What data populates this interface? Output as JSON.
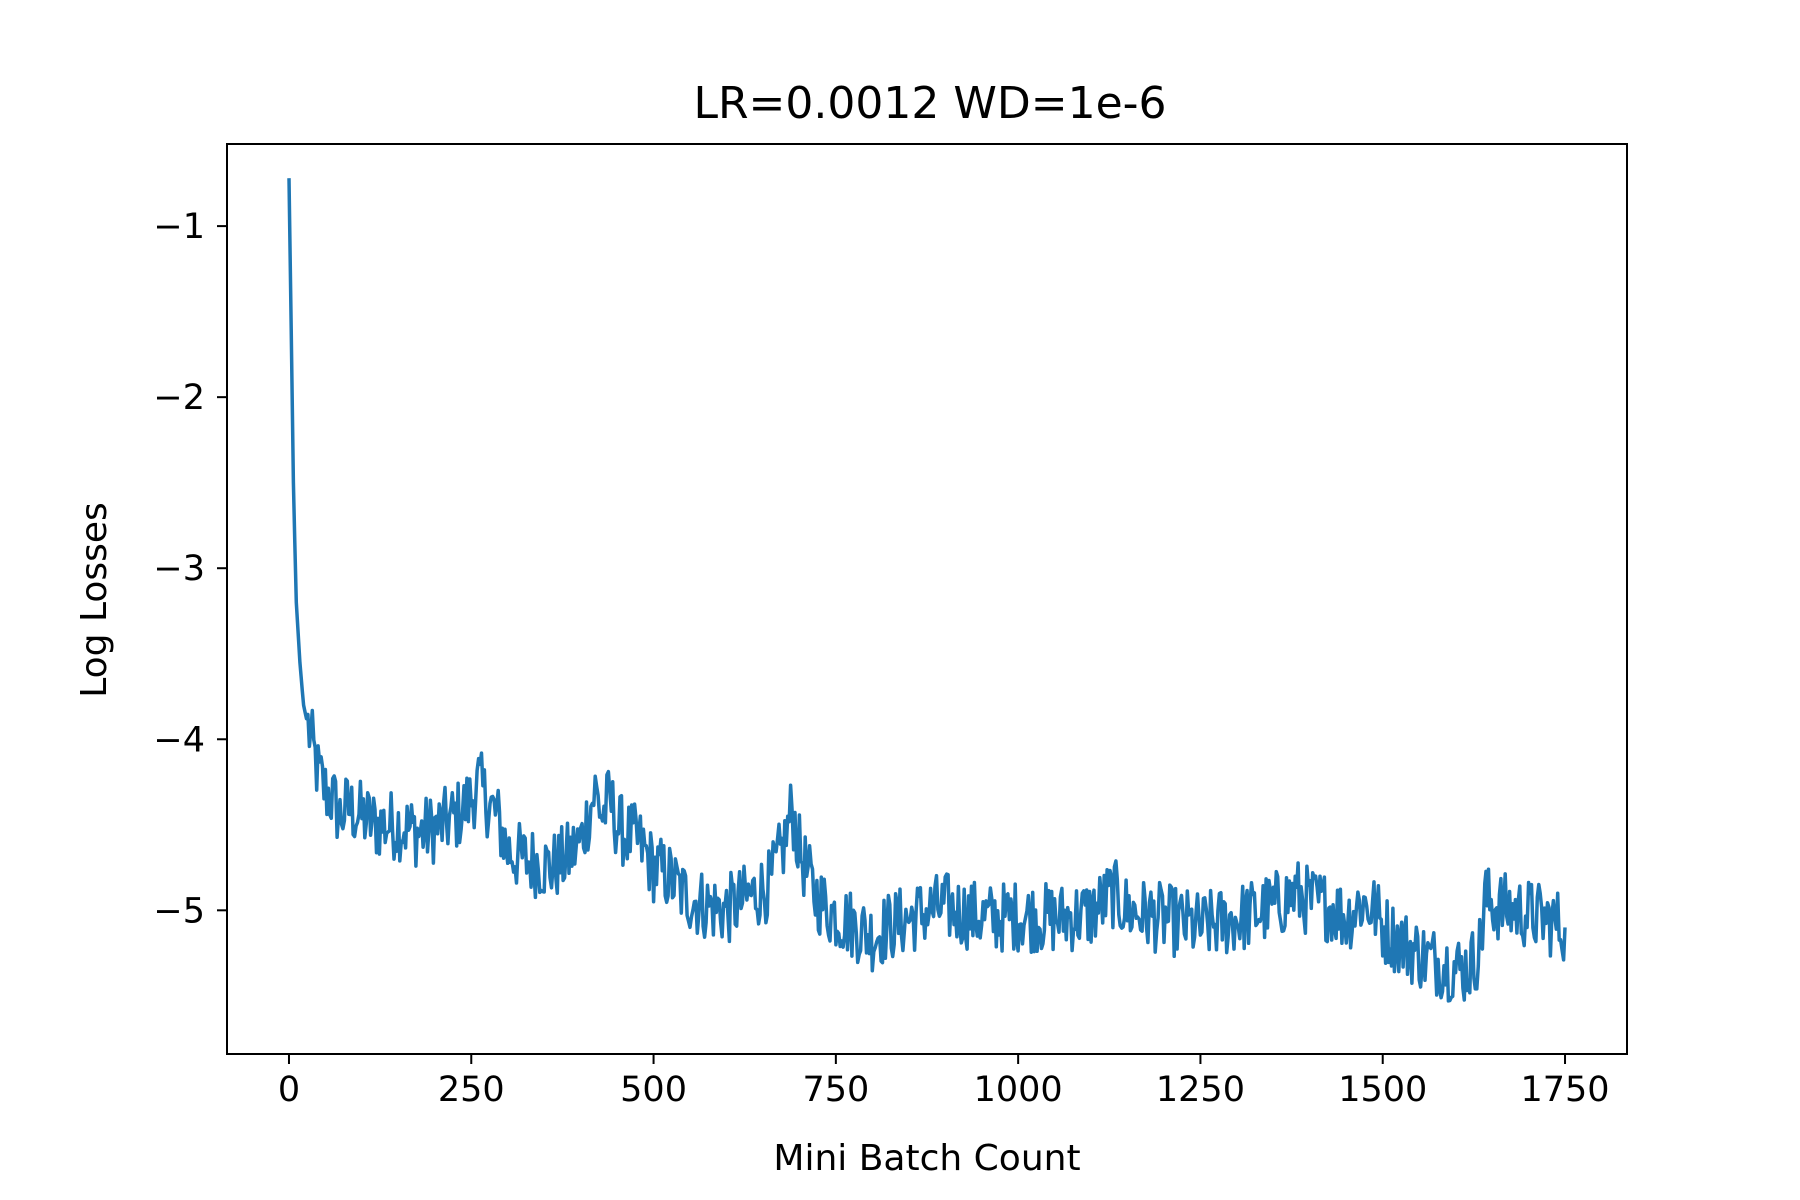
{
  "chart_data": {
    "type": "line",
    "title": "LR=0.0012 WD=1e-6",
    "xlabel": "Mini Batch Count",
    "ylabel": "Log Losses",
    "xlim": [
      -85,
      1835
    ],
    "ylim": [
      -5.84,
      -0.52
    ],
    "xticks": [
      0,
      250,
      500,
      750,
      1000,
      1250,
      1500,
      1750
    ],
    "xtick_labels": [
      "0",
      "250",
      "500",
      "750",
      "1000",
      "1250",
      "1500",
      "1750"
    ],
    "yticks": [
      -1,
      -2,
      -3,
      -4,
      -5
    ],
    "ytick_labels": [
      "−1",
      "−2",
      "−3",
      "−4",
      "−5"
    ],
    "grid": false,
    "legend": "none",
    "series": [
      {
        "color": "#1f77b4",
        "x": [
          0,
          3,
          6,
          10,
          15,
          20,
          30,
          40,
          50,
          60,
          70,
          80,
          100,
          120,
          150,
          180,
          210,
          230,
          250,
          260,
          270,
          285,
          300,
          320,
          340,
          360,
          380,
          400,
          410,
          420,
          430,
          440,
          450,
          460,
          480,
          500,
          520,
          540,
          560,
          580,
          600,
          620,
          640,
          660,
          680,
          690,
          700,
          720,
          740,
          760,
          780,
          800,
          820,
          850,
          880,
          900,
          930,
          960,
          1000,
          1050,
          1100,
          1130,
          1150,
          1200,
          1250,
          1300,
          1350,
          1380,
          1400,
          1430,
          1450,
          1470,
          1490,
          1500,
          1530,
          1560,
          1590,
          1610,
          1625,
          1635,
          1640,
          1645,
          1660,
          1680,
          1700,
          1720,
          1740,
          1750
        ],
        "y": [
          -0.72,
          -1.6,
          -2.5,
          -3.2,
          -3.55,
          -3.8,
          -4.0,
          -4.2,
          -4.3,
          -4.35,
          -4.45,
          -4.4,
          -4.45,
          -4.5,
          -4.5,
          -4.55,
          -4.5,
          -4.45,
          -4.35,
          -4.25,
          -4.35,
          -4.45,
          -4.65,
          -4.7,
          -4.72,
          -4.75,
          -4.7,
          -4.6,
          -4.45,
          -4.3,
          -4.45,
          -4.35,
          -4.5,
          -4.55,
          -4.6,
          -4.75,
          -4.8,
          -4.9,
          -4.95,
          -4.98,
          -5.0,
          -4.95,
          -4.9,
          -4.85,
          -4.6,
          -4.4,
          -4.65,
          -4.9,
          -5.0,
          -5.05,
          -5.1,
          -5.15,
          -5.1,
          -5.05,
          -5.0,
          -4.98,
          -5.02,
          -5.05,
          -5.03,
          -5.05,
          -5.02,
          -4.9,
          -5.0,
          -5.05,
          -5.1,
          -5.05,
          -4.98,
          -4.9,
          -4.95,
          -4.98,
          -5.05,
          -4.95,
          -5.0,
          -5.1,
          -5.2,
          -5.28,
          -5.32,
          -5.35,
          -5.3,
          -5.2,
          -4.9,
          -4.95,
          -4.98,
          -5.0,
          -5.02,
          -5.05,
          -5.08,
          -5.1
        ]
      }
    ]
  }
}
